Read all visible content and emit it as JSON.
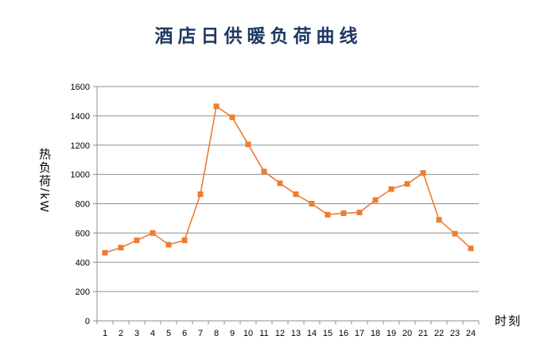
{
  "chart_data": {
    "type": "line",
    "title": "酒店日供暖负荷曲线",
    "xlabel": "时刻",
    "ylabel": "热负荷/kW",
    "categories": [
      1,
      2,
      3,
      4,
      5,
      6,
      7,
      8,
      9,
      10,
      11,
      12,
      13,
      14,
      15,
      16,
      17,
      18,
      19,
      20,
      21,
      22,
      23,
      24
    ],
    "values": [
      465,
      500,
      550,
      600,
      520,
      550,
      865,
      1465,
      1390,
      1205,
      1020,
      940,
      865,
      800,
      725,
      735,
      740,
      825,
      900,
      935,
      1010,
      690,
      595,
      495
    ],
    "ylim": [
      0,
      1600
    ],
    "yticks": [
      0,
      200,
      400,
      600,
      800,
      1000,
      1200,
      1400,
      1600
    ],
    "grid": true,
    "legend": false,
    "marker": "square",
    "colors": {
      "line": "#ED7D31",
      "marker": "#ED7D31",
      "grid": "#8E8E8E",
      "axis": "#8E8E8E",
      "title": "#1F3864",
      "tick_labels": "#000000"
    }
  }
}
